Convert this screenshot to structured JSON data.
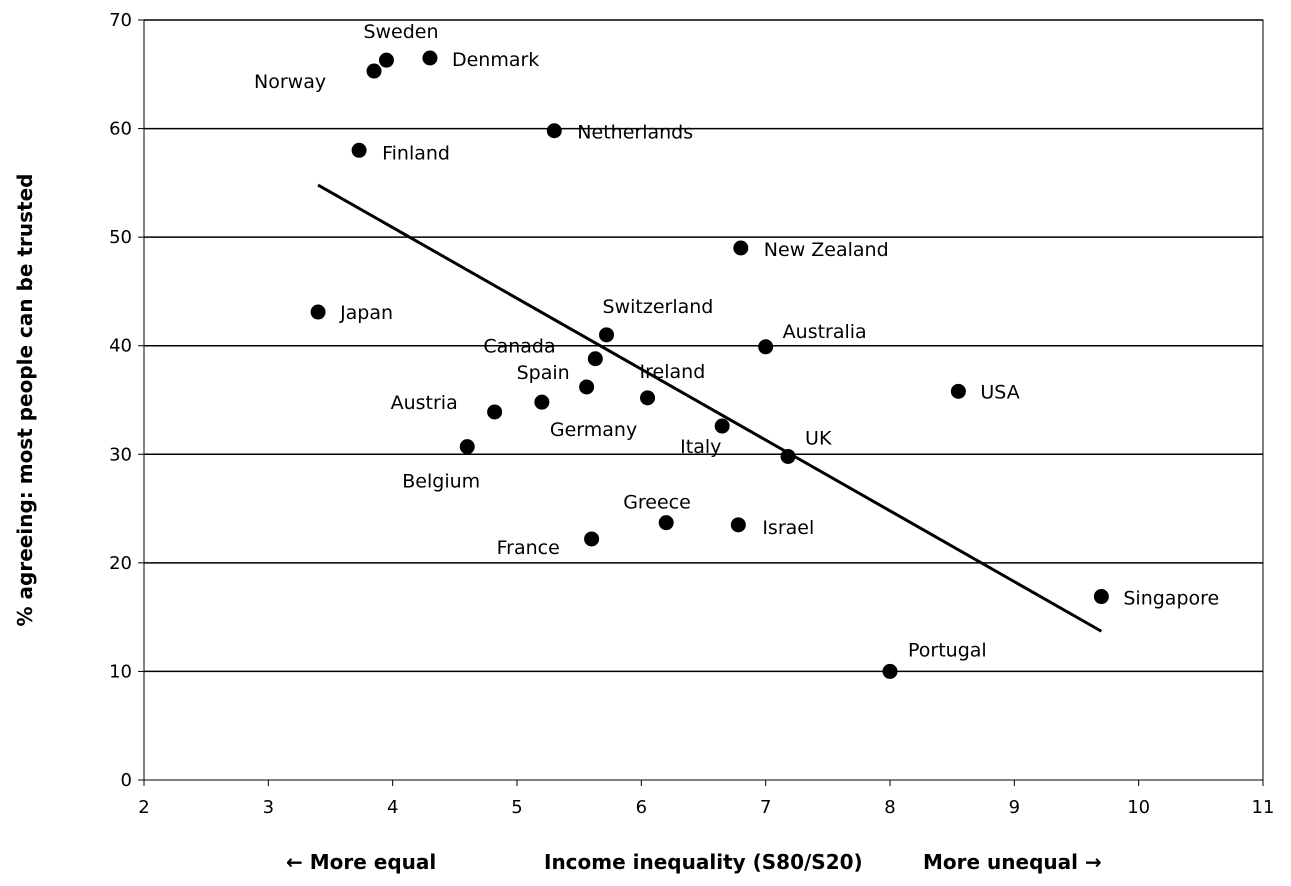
{
  "chart_data": {
    "type": "scatter",
    "title": "",
    "xlabel": {
      "left": "←  More equal",
      "center": "Income inequality  (S80/S20)",
      "right": "More unequal  →"
    },
    "ylabel": "% agreeing: most people can be trusted",
    "xlim": [
      2,
      11
    ],
    "ylim": [
      0,
      70
    ],
    "xticks": [
      "2",
      "3",
      "4",
      "5",
      "6",
      "7",
      "8",
      "9",
      "10",
      "11"
    ],
    "yticks": [
      "0",
      "10",
      "20",
      "30",
      "40",
      "50",
      "60",
      "70"
    ],
    "grid": "horizontal",
    "points": [
      {
        "label": "Norway",
        "x": 3.85,
        "y": 65.3
      },
      {
        "label": "Sweden",
        "x": 3.95,
        "y": 66.3
      },
      {
        "label": "Denmark",
        "x": 4.3,
        "y": 66.5
      },
      {
        "label": "Netherlands",
        "x": 5.3,
        "y": 59.8
      },
      {
        "label": "Finland",
        "x": 3.73,
        "y": 58.0
      },
      {
        "label": "New Zealand",
        "x": 6.8,
        "y": 49.0
      },
      {
        "label": "Japan",
        "x": 3.4,
        "y": 43.1
      },
      {
        "label": "Switzerland",
        "x": 5.72,
        "y": 41.0
      },
      {
        "label": "Australia",
        "x": 7.0,
        "y": 39.9
      },
      {
        "label": "Canada",
        "x": 5.63,
        "y": 38.8
      },
      {
        "label": "Spain",
        "x": 5.56,
        "y": 36.2
      },
      {
        "label": "USA",
        "x": 8.55,
        "y": 35.8
      },
      {
        "label": "Ireland",
        "x": 6.05,
        "y": 35.2
      },
      {
        "label": "Germany",
        "x": 5.2,
        "y": 34.8
      },
      {
        "label": "Austria",
        "x": 4.82,
        "y": 33.9
      },
      {
        "label": "Italy",
        "x": 6.65,
        "y": 32.6
      },
      {
        "label": "Belgium",
        "x": 4.6,
        "y": 30.7
      },
      {
        "label": "UK",
        "x": 7.18,
        "y": 29.8
      },
      {
        "label": "Greece",
        "x": 6.2,
        "y": 23.7
      },
      {
        "label": "Israel",
        "x": 6.78,
        "y": 23.5
      },
      {
        "label": "France",
        "x": 5.6,
        "y": 22.2
      },
      {
        "label": "Singapore",
        "x": 9.7,
        "y": 16.9
      },
      {
        "label": "Portugal",
        "x": 8.0,
        "y": 10.0
      }
    ],
    "trendline": {
      "x": [
        3.4,
        9.7
      ],
      "y": [
        54.8,
        13.7
      ]
    }
  }
}
